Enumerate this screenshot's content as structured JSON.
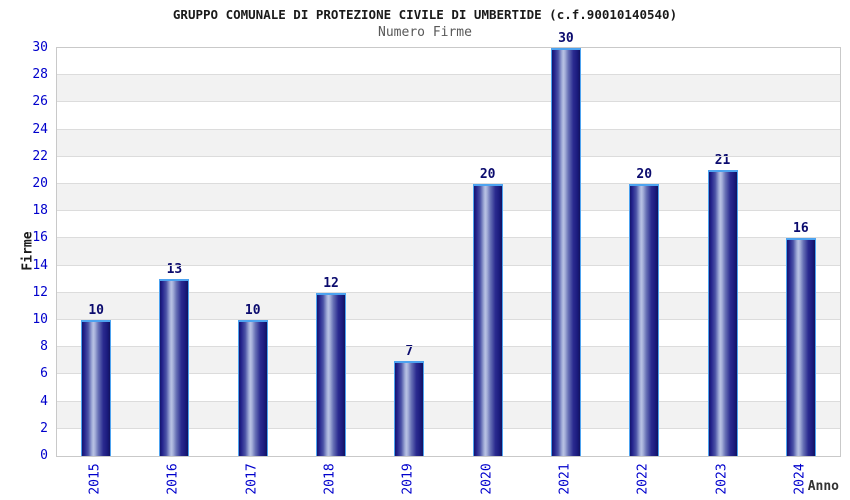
{
  "chart_data": {
    "type": "bar",
    "title": "GRUPPO COMUNALE DI PROTEZIONE CIVILE DI UMBERTIDE (c.f.90010140540)",
    "subtitle": "Numero Firme",
    "xlabel": "Anno",
    "ylabel": "Firme",
    "categories": [
      "2015",
      "2016",
      "2017",
      "2018",
      "2019",
      "2020",
      "2021",
      "2022",
      "2023",
      "2024"
    ],
    "values": [
      10,
      13,
      10,
      12,
      7,
      20,
      30,
      20,
      21,
      16
    ],
    "ylim": [
      0,
      30
    ],
    "ytick_step": 2,
    "grid": true,
    "legend": "none",
    "band_colors": [
      "#ffffff",
      "#f2f2f2"
    ],
    "colors": {
      "tick_label": "#0000cc",
      "value_label": "#0b0b6e",
      "bar_border": "#4da3f0",
      "bar_dark": "#15156e",
      "bar_highlight": "#b8c2e4",
      "gridline": "#dcdcdc",
      "plot_border": "#c9c9c9",
      "title": "#1a1a1a",
      "subtitle": "#595959"
    }
  }
}
